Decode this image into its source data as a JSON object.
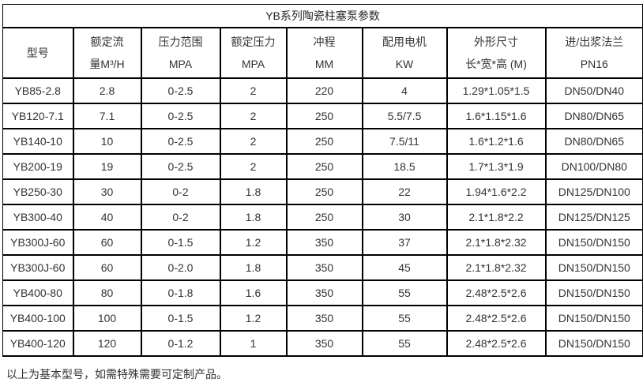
{
  "table": {
    "title": "YB系列陶瓷柱塞泵参数",
    "columns": [
      {
        "name": "model",
        "line1": "型号",
        "line2": ""
      },
      {
        "name": "rated-flow",
        "line1": "额定流",
        "line2": "量M³/H"
      },
      {
        "name": "pressure-range",
        "line1": "压力范围",
        "line2": "MPA"
      },
      {
        "name": "rated-pressure",
        "line1": "额定压力",
        "line2": "MPA"
      },
      {
        "name": "stroke",
        "line1": "冲程",
        "line2": "MM"
      },
      {
        "name": "motor-power",
        "line1": "配用电机",
        "line2": "KW"
      },
      {
        "name": "dimensions",
        "line1": "外形尺寸",
        "line2": "长*宽*高 (M)"
      },
      {
        "name": "flange",
        "line1": "进/出浆法兰",
        "line2": "PN16"
      }
    ],
    "rows": [
      [
        "YB85-2.8",
        "2.8",
        "0-2.5",
        "2",
        "220",
        "4",
        "1.29*1.05*1.5",
        "DN50/DN40"
      ],
      [
        "YB120-7.1",
        "7.1",
        "0-2.5",
        "2",
        "250",
        "5.5/7.5",
        "1.6*1.15*1.6",
        "DN80/DN65"
      ],
      [
        "YB140-10",
        "10",
        "0-2.5",
        "2",
        "250",
        "7.5/11",
        "1.6*1.2*1.6",
        "DN80/DN65"
      ],
      [
        "YB200-19",
        "19",
        "0-2.5",
        "2",
        "250",
        "18.5",
        "1.7*1.3*1.9",
        "DN100/DN80"
      ],
      [
        "YB250-30",
        "30",
        "0-2",
        "1.8",
        "250",
        "22",
        "1.94*1.6*2.2",
        "DN125/DN100"
      ],
      [
        "YB300-40",
        "40",
        "0-2",
        "1.8",
        "250",
        "30",
        "2.1*1.8*2.2",
        "DN125/DN125"
      ],
      [
        "YB300J-60",
        "60",
        "0-1.5",
        "1.2",
        "350",
        "37",
        "2.1*1.8*2.32",
        "DN150/DN150"
      ],
      [
        "YB300J-60",
        "60",
        "0-2.0",
        "1.8",
        "350",
        "45",
        "2.1*1.8*2.32",
        "DN150/DN150"
      ],
      [
        "YB400-80",
        "80",
        "0-1.8",
        "1.6",
        "350",
        "55",
        "2.48*2.5*2.6",
        "DN150/DN150"
      ],
      [
        "YB400-100",
        "100",
        "0-1.5",
        "1.2",
        "350",
        "55",
        "2.48*2.5*2.6",
        "DN150/DN150"
      ],
      [
        "YB400-120",
        "120",
        "0-1.2",
        "1",
        "350",
        "55",
        "2.48*2.5*2.6",
        "DN150/DN150"
      ]
    ]
  },
  "footer": {
    "note": "以上为基本型号，如需特殊需要可定制产品。"
  },
  "colors": {
    "border": "#000000",
    "text": "#333333",
    "title_text": "#262626",
    "background": "#ffffff"
  }
}
